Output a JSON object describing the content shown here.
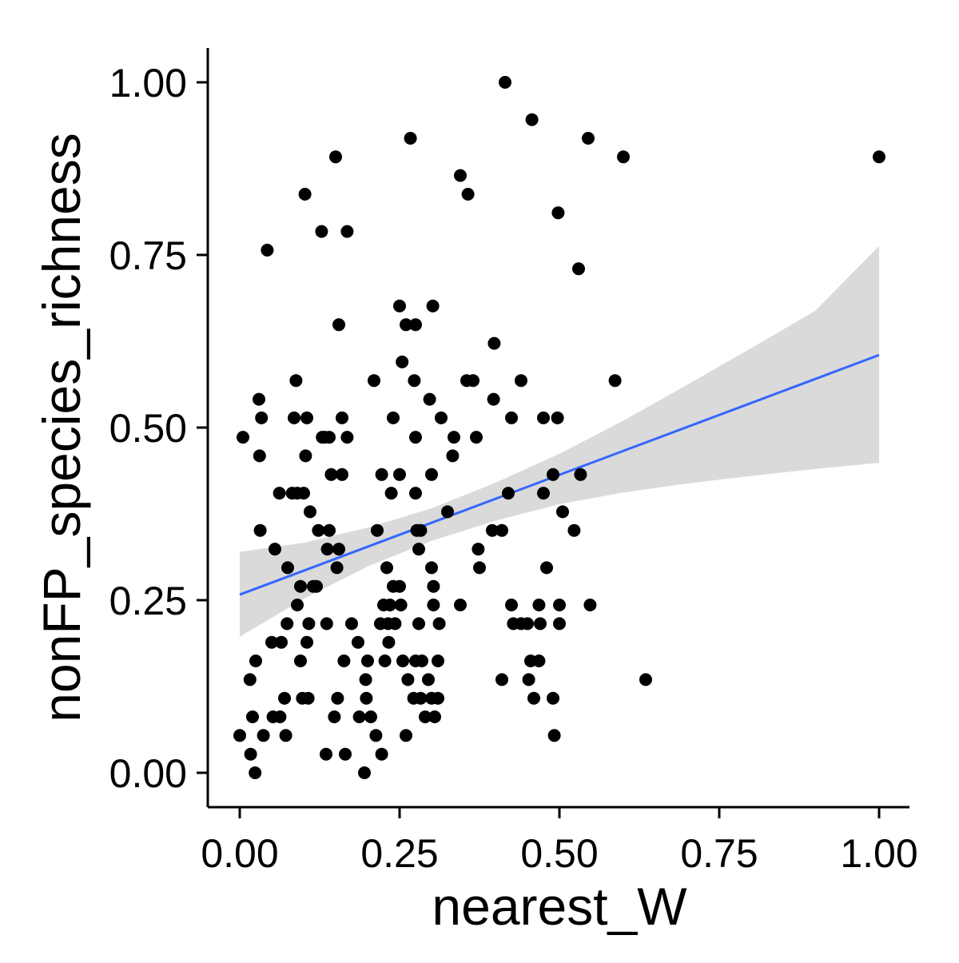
{
  "chart_data": {
    "type": "scatter",
    "title": "",
    "xlabel": "nearest_W",
    "ylabel": "nonFP_species_richness",
    "xlim": [
      0,
      1
    ],
    "ylim": [
      0,
      1
    ],
    "x_ticks": [
      {
        "value": 0.0,
        "label": "0.00"
      },
      {
        "value": 0.25,
        "label": "0.25"
      },
      {
        "value": 0.5,
        "label": "0.50"
      },
      {
        "value": 0.75,
        "label": "0.75"
      },
      {
        "value": 1.0,
        "label": "1.00"
      }
    ],
    "y_ticks": [
      {
        "value": 0.0,
        "label": "0.00"
      },
      {
        "value": 0.25,
        "label": "0.25"
      },
      {
        "value": 0.5,
        "label": "0.50"
      },
      {
        "value": 0.75,
        "label": "0.75"
      },
      {
        "value": 1.0,
        "label": "1.00"
      }
    ],
    "grid": false,
    "legend": "none",
    "colors": {
      "points": "#000000",
      "fit_line": "#3366FF",
      "confidence_band": "#D3D3D3",
      "axis": "#000000"
    },
    "points": [
      [
        0.0,
        0.054
      ],
      [
        0.005,
        0.486
      ],
      [
        0.016,
        0.135
      ],
      [
        0.017,
        0.027
      ],
      [
        0.02,
        0.081
      ],
      [
        0.024,
        0.0
      ],
      [
        0.025,
        0.162
      ],
      [
        0.03,
        0.541
      ],
      [
        0.031,
        0.459
      ],
      [
        0.032,
        0.351
      ],
      [
        0.034,
        0.514
      ],
      [
        0.037,
        0.054
      ],
      [
        0.043,
        0.757
      ],
      [
        0.05,
        0.189
      ],
      [
        0.052,
        0.081
      ],
      [
        0.055,
        0.324
      ],
      [
        0.062,
        0.405
      ],
      [
        0.063,
        0.081
      ],
      [
        0.065,
        0.189
      ],
      [
        0.07,
        0.108
      ],
      [
        0.072,
        0.054
      ],
      [
        0.074,
        0.216
      ],
      [
        0.075,
        0.297
      ],
      [
        0.082,
        0.405
      ],
      [
        0.085,
        0.514
      ],
      [
        0.088,
        0.568
      ],
      [
        0.09,
        0.405
      ],
      [
        0.09,
        0.243
      ],
      [
        0.095,
        0.27
      ],
      [
        0.095,
        0.162
      ],
      [
        0.098,
        0.108
      ],
      [
        0.1,
        0.405
      ],
      [
        0.102,
        0.838
      ],
      [
        0.103,
        0.459
      ],
      [
        0.105,
        0.514
      ],
      [
        0.105,
        0.189
      ],
      [
        0.107,
        0.108
      ],
      [
        0.108,
        0.216
      ],
      [
        0.11,
        0.378
      ],
      [
        0.115,
        0.27
      ],
      [
        0.12,
        0.27
      ],
      [
        0.123,
        0.351
      ],
      [
        0.128,
        0.784
      ],
      [
        0.129,
        0.486
      ],
      [
        0.133,
        0.486
      ],
      [
        0.135,
        0.027
      ],
      [
        0.136,
        0.216
      ],
      [
        0.137,
        0.324
      ],
      [
        0.14,
        0.351
      ],
      [
        0.14,
        0.486
      ],
      [
        0.143,
        0.432
      ],
      [
        0.148,
        0.081
      ],
      [
        0.15,
        0.892
      ],
      [
        0.152,
        0.297
      ],
      [
        0.153,
        0.108
      ],
      [
        0.155,
        0.649
      ],
      [
        0.155,
        0.324
      ],
      [
        0.16,
        0.432
      ],
      [
        0.16,
        0.514
      ],
      [
        0.163,
        0.162
      ],
      [
        0.165,
        0.027
      ],
      [
        0.168,
        0.784
      ],
      [
        0.168,
        0.486
      ],
      [
        0.175,
        0.216
      ],
      [
        0.185,
        0.189
      ],
      [
        0.187,
        0.081
      ],
      [
        0.195,
        0.0
      ],
      [
        0.197,
        0.135
      ],
      [
        0.198,
        0.108
      ],
      [
        0.2,
        0.162
      ],
      [
        0.205,
        0.081
      ],
      [
        0.21,
        0.568
      ],
      [
        0.213,
        0.054
      ],
      [
        0.215,
        0.351
      ],
      [
        0.22,
        0.216
      ],
      [
        0.222,
        0.432
      ],
      [
        0.222,
        0.027
      ],
      [
        0.225,
        0.243
      ],
      [
        0.227,
        0.162
      ],
      [
        0.23,
        0.297
      ],
      [
        0.232,
        0.216
      ],
      [
        0.233,
        0.189
      ],
      [
        0.235,
        0.243
      ],
      [
        0.237,
        0.405
      ],
      [
        0.24,
        0.514
      ],
      [
        0.24,
        0.27
      ],
      [
        0.243,
        0.216
      ],
      [
        0.25,
        0.676
      ],
      [
        0.25,
        0.432
      ],
      [
        0.25,
        0.27
      ],
      [
        0.252,
        0.243
      ],
      [
        0.254,
        0.595
      ],
      [
        0.255,
        0.162
      ],
      [
        0.26,
        0.649
      ],
      [
        0.26,
        0.054
      ],
      [
        0.263,
        0.135
      ],
      [
        0.267,
        0.919
      ],
      [
        0.272,
        0.108
      ],
      [
        0.273,
        0.568
      ],
      [
        0.275,
        0.649
      ],
      [
        0.275,
        0.486
      ],
      [
        0.275,
        0.405
      ],
      [
        0.275,
        0.162
      ],
      [
        0.277,
        0.351
      ],
      [
        0.28,
        0.324
      ],
      [
        0.28,
        0.216
      ],
      [
        0.283,
        0.351
      ],
      [
        0.283,
        0.108
      ],
      [
        0.285,
        0.162
      ],
      [
        0.29,
        0.081
      ],
      [
        0.295,
        0.135
      ],
      [
        0.297,
        0.541
      ],
      [
        0.3,
        0.108
      ],
      [
        0.3,
        0.297
      ],
      [
        0.3,
        0.432
      ],
      [
        0.302,
        0.676
      ],
      [
        0.303,
        0.243
      ],
      [
        0.303,
        0.27
      ],
      [
        0.305,
        0.081
      ],
      [
        0.31,
        0.108
      ],
      [
        0.31,
        0.162
      ],
      [
        0.312,
        0.216
      ],
      [
        0.315,
        0.514
      ],
      [
        0.325,
        0.378
      ],
      [
        0.333,
        0.459
      ],
      [
        0.335,
        0.486
      ],
      [
        0.345,
        0.865
      ],
      [
        0.345,
        0.243
      ],
      [
        0.355,
        0.568
      ],
      [
        0.357,
        0.838
      ],
      [
        0.365,
        0.568
      ],
      [
        0.37,
        0.486
      ],
      [
        0.373,
        0.324
      ],
      [
        0.375,
        0.297
      ],
      [
        0.395,
        0.351
      ],
      [
        0.397,
        0.541
      ],
      [
        0.398,
        0.622
      ],
      [
        0.41,
        0.351
      ],
      [
        0.41,
        0.135
      ],
      [
        0.415,
        1.0
      ],
      [
        0.42,
        0.405
      ],
      [
        0.425,
        0.514
      ],
      [
        0.425,
        0.243
      ],
      [
        0.428,
        0.216
      ],
      [
        0.44,
        0.216
      ],
      [
        0.44,
        0.568
      ],
      [
        0.45,
        0.216
      ],
      [
        0.452,
        0.135
      ],
      [
        0.455,
        0.162
      ],
      [
        0.457,
        0.946
      ],
      [
        0.46,
        0.108
      ],
      [
        0.468,
        0.243
      ],
      [
        0.468,
        0.162
      ],
      [
        0.47,
        0.216
      ],
      [
        0.475,
        0.405
      ],
      [
        0.475,
        0.514
      ],
      [
        0.48,
        0.297
      ],
      [
        0.49,
        0.432
      ],
      [
        0.49,
        0.108
      ],
      [
        0.492,
        0.054
      ],
      [
        0.497,
        0.514
      ],
      [
        0.498,
        0.811
      ],
      [
        0.5,
        0.243
      ],
      [
        0.5,
        0.216
      ],
      [
        0.505,
        0.378
      ],
      [
        0.523,
        0.351
      ],
      [
        0.53,
        0.73
      ],
      [
        0.533,
        0.432
      ],
      [
        0.545,
        0.919
      ],
      [
        0.548,
        0.243
      ],
      [
        0.587,
        0.568
      ],
      [
        0.6,
        0.892
      ],
      [
        0.635,
        0.135
      ],
      [
        1.0,
        0.892
      ]
    ],
    "fit": {
      "method": "linear",
      "x": [
        0.0,
        1.0
      ],
      "y": [
        0.258,
        0.605
      ]
    },
    "confidence_band": {
      "x": [
        0.0,
        0.1,
        0.2,
        0.3,
        0.4,
        0.5,
        0.6,
        0.7,
        0.8,
        0.9,
        1.0
      ],
      "lower": [
        0.197,
        0.252,
        0.299,
        0.336,
        0.365,
        0.389,
        0.406,
        0.419,
        0.43,
        0.44,
        0.449
      ],
      "upper": [
        0.32,
        0.333,
        0.355,
        0.383,
        0.42,
        0.462,
        0.51,
        0.562,
        0.615,
        0.669,
        0.763
      ]
    }
  }
}
